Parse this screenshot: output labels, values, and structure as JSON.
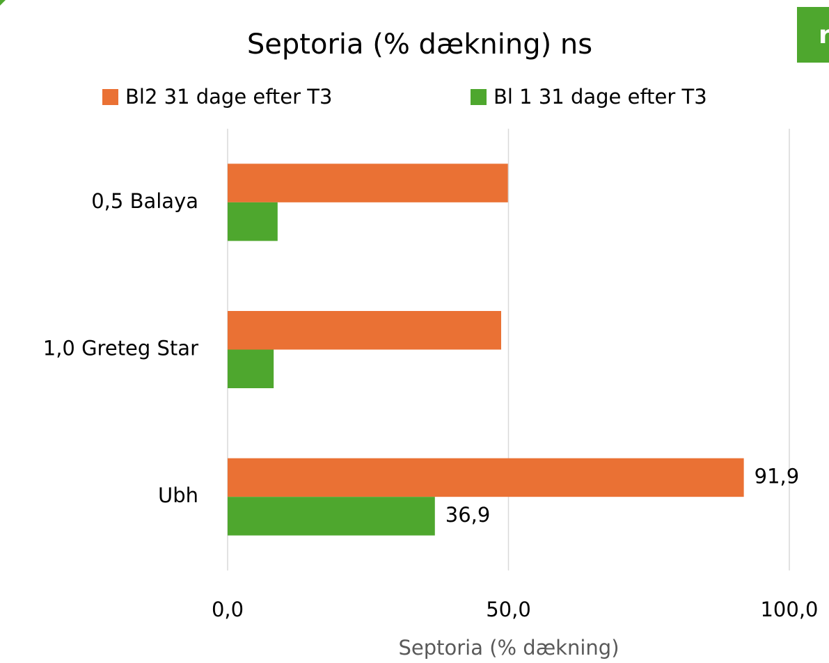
{
  "corner_label": "r",
  "chart_data": {
    "type": "hbar",
    "title": "Septoria (% dækning) ns",
    "x_label": "Septoria (% dækning)",
    "categories": [
      "0,5 Balaya",
      "1,0 Greteg Star",
      "Ubh"
    ],
    "series": [
      {
        "name": "Bl2 31 dage efter T3",
        "color": "#ea7134",
        "values": [
          49.9,
          48.7,
          91.9
        ],
        "value_labels": [
          null,
          null,
          "91,9"
        ]
      },
      {
        "name": "Bl 1 31 dage efter T3",
        "color": "#4ea72e",
        "values": [
          8.9,
          8.2,
          36.9
        ],
        "value_labels": [
          null,
          null,
          "36,9"
        ]
      }
    ],
    "xlim": [
      0,
      100
    ],
    "xticks": [
      {
        "value": 0,
        "label": "0,0"
      },
      {
        "value": 50,
        "label": "50,0"
      },
      {
        "value": 100,
        "label": "100,0"
      }
    ],
    "grid": true,
    "legend": "top"
  }
}
